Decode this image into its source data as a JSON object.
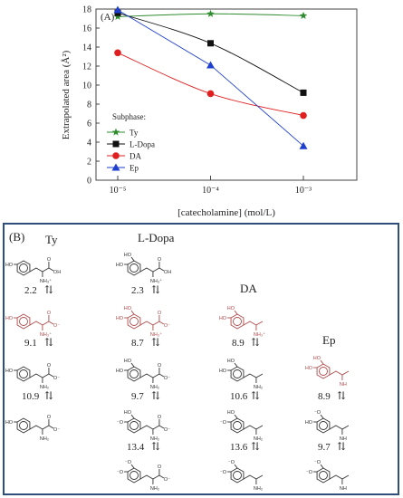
{
  "chart_data": {
    "type": "line",
    "panel_label": "(A)",
    "xlabel": "[catecholamine] (mol/L)",
    "ylabel": "Extrapolated area (Å²)",
    "x_scale": "log",
    "x": [
      1e-05,
      0.0001,
      0.001
    ],
    "x_tick_labels": [
      "10⁻⁵",
      "10⁻⁴",
      "10⁻³"
    ],
    "ylim": [
      0,
      18
    ],
    "y_ticks": [
      0,
      2,
      4,
      6,
      8,
      10,
      12,
      14,
      16,
      18
    ],
    "legend_title": "Subphase:",
    "legend_position": "lower-left",
    "series": [
      {
        "name": "Ty",
        "color": "#2e8b2e",
        "marker": "star",
        "points": [
          [
            1e-05,
            17.2
          ],
          [
            0.0001,
            17.5
          ],
          [
            0.001,
            17.3
          ]
        ]
      },
      {
        "name": "L-Dopa",
        "color": "#111111",
        "marker": "square",
        "points": [
          [
            1e-05,
            17.6
          ],
          [
            0.0001,
            14.4
          ],
          [
            0.001,
            9.2
          ]
        ]
      },
      {
        "name": "DA",
        "color": "#e02020",
        "marker": "circle",
        "points": [
          [
            1e-05,
            13.4
          ],
          [
            0.0001,
            9.1
          ],
          [
            0.001,
            6.8
          ]
        ]
      },
      {
        "name": "Ep",
        "color": "#1f3fcf",
        "marker": "triangle",
        "points": [
          [
            1e-05,
            17.9
          ],
          [
            0.0001,
            12.1
          ],
          [
            0.001,
            3.6
          ]
        ]
      }
    ]
  },
  "panel_b": {
    "label": "(B)",
    "columns": [
      "Ty",
      "L-Dopa",
      "DA",
      "Ep"
    ],
    "pka": {
      "Ty": [
        "2.2",
        "9.1",
        "10.9"
      ],
      "L-Dopa": [
        "2.3",
        "8.7",
        "9.7",
        "13.4"
      ],
      "DA": [
        "8.9",
        "10.6",
        "13.6"
      ],
      "Ep": [
        "8.9",
        "9.7"
      ]
    },
    "equilibrium_arrow": "⇅"
  }
}
